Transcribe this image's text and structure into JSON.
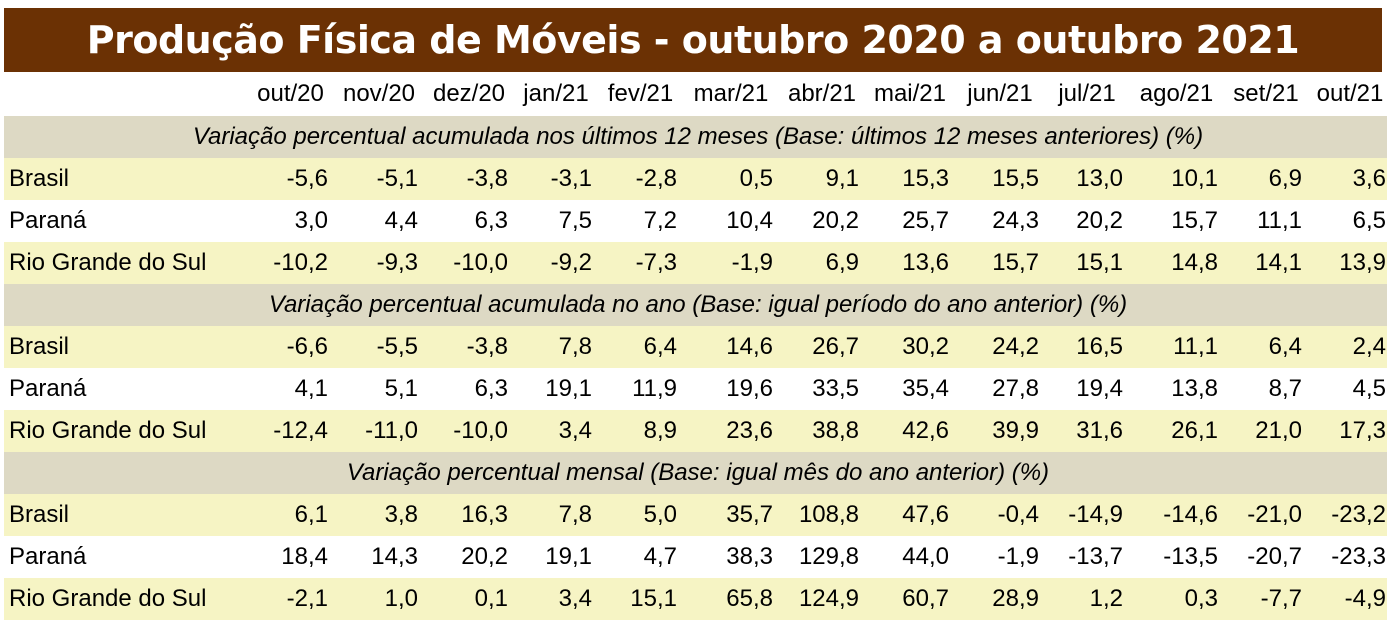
{
  "title": "Produção Física de Móveis - outubro 2020 a outubro 2021",
  "colors": {
    "title_bg": "#6b3104",
    "title_fg": "#ffffff",
    "section_bg": "#ddd9c4",
    "yellow_row": "#f6f4c4",
    "white_row": "#ffffff"
  },
  "columns": [
    "out/20",
    "nov/20",
    "dez/20",
    "jan/21",
    "fev/21",
    "mar/21",
    "abr/21",
    "mai/21",
    "jun/21",
    "jul/21",
    "ago/21",
    "set/21",
    "out/21"
  ],
  "sections": [
    {
      "heading": "Variação percentual acumulada nos últimos 12 meses (Base: últimos 12 meses anteriores) (%)",
      "rows": [
        {
          "label": "Brasil",
          "values": [
            "-5,6",
            "-5,1",
            "-3,8",
            "-3,1",
            "-2,8",
            "0,5",
            "9,1",
            "15,3",
            "15,5",
            "13,0",
            "10,1",
            "6,9",
            "3,6"
          ]
        },
        {
          "label": "Paraná",
          "values": [
            "3,0",
            "4,4",
            "6,3",
            "7,5",
            "7,2",
            "10,4",
            "20,2",
            "25,7",
            "24,3",
            "20,2",
            "15,7",
            "11,1",
            "6,5"
          ]
        },
        {
          "label": "Rio Grande do Sul",
          "values": [
            "-10,2",
            "-9,3",
            "-10,0",
            "-9,2",
            "-7,3",
            "-1,9",
            "6,9",
            "13,6",
            "15,7",
            "15,1",
            "14,8",
            "14,1",
            "13,9"
          ]
        }
      ]
    },
    {
      "heading": "Variação percentual acumulada no ano (Base: igual período do ano anterior) (%)",
      "rows": [
        {
          "label": "Brasil",
          "values": [
            "-6,6",
            "-5,5",
            "-3,8",
            "7,8",
            "6,4",
            "14,6",
            "26,7",
            "30,2",
            "24,2",
            "16,5",
            "11,1",
            "6,4",
            "2,4"
          ]
        },
        {
          "label": "Paraná",
          "values": [
            "4,1",
            "5,1",
            "6,3",
            "19,1",
            "11,9",
            "19,6",
            "33,5",
            "35,4",
            "27,8",
            "19,4",
            "13,8",
            "8,7",
            "4,5"
          ]
        },
        {
          "label": "Rio Grande do Sul",
          "values": [
            "-12,4",
            "-11,0",
            "-10,0",
            "3,4",
            "8,9",
            "23,6",
            "38,8",
            "42,6",
            "39,9",
            "31,6",
            "26,1",
            "21,0",
            "17,3"
          ]
        }
      ]
    },
    {
      "heading": "Variação percentual mensal (Base: igual mês do ano anterior) (%)",
      "rows": [
        {
          "label": "Brasil",
          "values": [
            "6,1",
            "3,8",
            "16,3",
            "7,8",
            "5,0",
            "35,7",
            "108,8",
            "47,6",
            "-0,4",
            "-14,9",
            "-14,6",
            "-21,0",
            "-23,2"
          ]
        },
        {
          "label": "Paraná",
          "values": [
            "18,4",
            "14,3",
            "20,2",
            "19,1",
            "4,7",
            "38,3",
            "129,8",
            "44,0",
            "-1,9",
            "-13,7",
            "-13,5",
            "-20,7",
            "-23,3"
          ]
        },
        {
          "label": "Rio Grande do Sul",
          "values": [
            "-2,1",
            "1,0",
            "0,1",
            "3,4",
            "15,1",
            "65,8",
            "124,9",
            "60,7",
            "28,9",
            "1,2",
            "0,3",
            "-7,7",
            "-4,9"
          ]
        }
      ]
    }
  ]
}
